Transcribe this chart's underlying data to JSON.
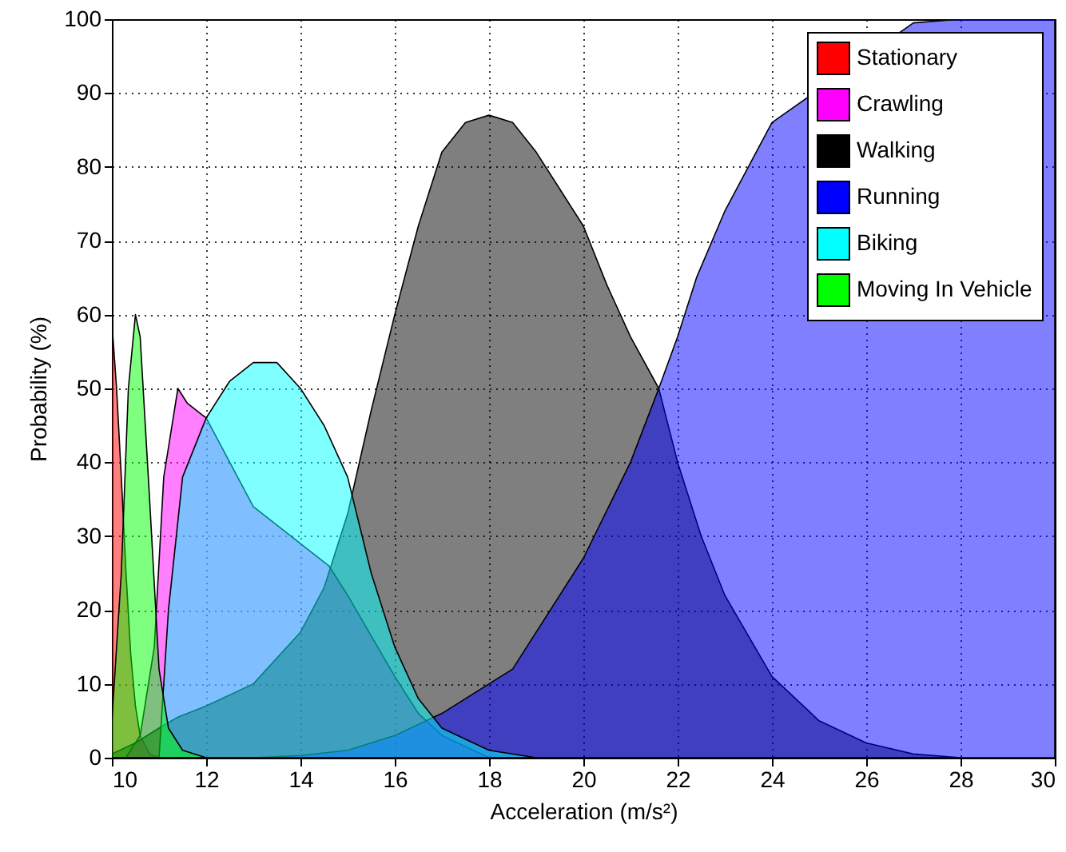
{
  "chart_data": {
    "type": "area",
    "xlabel": "Acceleration (m/s²)",
    "ylabel": "Probability (%)",
    "xlim": [
      10,
      30
    ],
    "ylim": [
      0,
      100
    ],
    "xticks": [
      10,
      12,
      14,
      16,
      18,
      20,
      22,
      24,
      26,
      28,
      30
    ],
    "yticks": [
      0,
      10,
      20,
      30,
      40,
      50,
      60,
      70,
      80,
      90,
      100
    ],
    "grid": true,
    "legend": "top right",
    "series": [
      {
        "name": "Stationary",
        "color": "#ff0000",
        "x": [
          10,
          10.1,
          10.2,
          10.3,
          10.4,
          10.5,
          10.6,
          10.8,
          11
        ],
        "values": [
          59,
          50,
          38,
          25,
          14,
          7,
          3,
          0.5,
          0
        ]
      },
      {
        "name": "Crawling",
        "color": "#ff00ff",
        "x": [
          10.3,
          10.6,
          10.9,
          11.1,
          11.4,
          11.6,
          12,
          13,
          14,
          14.6,
          15,
          16,
          16.5,
          17,
          18
        ],
        "values": [
          0,
          3,
          15,
          38,
          50,
          48,
          46,
          34,
          29,
          26,
          22,
          11,
          6,
          3,
          0
        ]
      },
      {
        "name": "Walking",
        "color": "#000000",
        "x": [
          10,
          10.5,
          11,
          11.4,
          12,
          13,
          14,
          14.5,
          15,
          15.5,
          16,
          16.5,
          17,
          17.5,
          18,
          18.5,
          19,
          19.5,
          20,
          20.5,
          21,
          21.6,
          22,
          22.5,
          23,
          24,
          25,
          26,
          27,
          28
        ],
        "values": [
          0.5,
          2,
          4,
          5.5,
          7,
          10,
          17,
          23,
          33,
          47,
          60,
          72,
          82,
          86,
          87,
          86,
          82,
          77,
          72,
          64,
          57,
          50,
          40,
          30,
          22,
          11,
          5,
          2,
          0.5,
          0
        ]
      },
      {
        "name": "Running",
        "color": "#0000ff",
        "x": [
          13,
          14,
          15,
          16,
          17,
          18,
          18.5,
          19,
          20,
          21,
          21.6,
          22,
          22.4,
          23,
          24,
          27,
          28,
          30
        ],
        "values": [
          0,
          0.3,
          1,
          3,
          6,
          10,
          12,
          17,
          27,
          40,
          50,
          57,
          65,
          74,
          86,
          99.5,
          100,
          100
        ]
      },
      {
        "name": "Biking",
        "color": "#00ffff",
        "x": [
          11,
          11.2,
          11.5,
          12,
          12.5,
          13,
          13.5,
          14,
          14.5,
          15,
          15.5,
          16,
          16.5,
          17,
          18,
          19
        ],
        "values": [
          0,
          20,
          38,
          46,
          51,
          53.5,
          53.5,
          50,
          45,
          38,
          25,
          15,
          8,
          4,
          1,
          0
        ]
      },
      {
        "name": "Moving In Vehicle",
        "color": "#00ff00",
        "x": [
          10,
          10.2,
          10.35,
          10.5,
          10.6,
          10.8,
          11,
          11.2,
          11.5,
          12
        ],
        "values": [
          5,
          25,
          50,
          60,
          57,
          35,
          12,
          4,
          1,
          0
        ]
      }
    ]
  }
}
